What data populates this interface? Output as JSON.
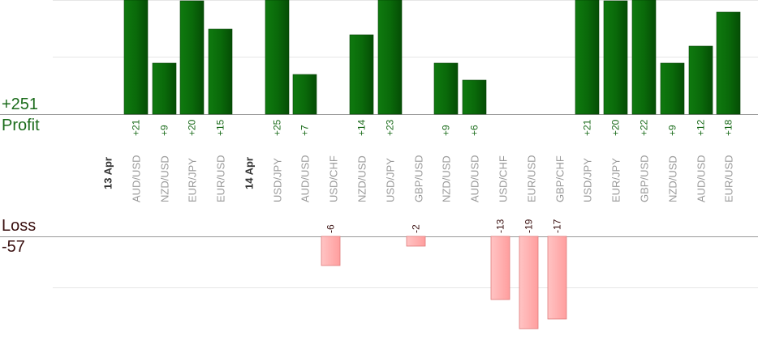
{
  "summary": {
    "profit_total": "+251",
    "profit_label": "Profit",
    "loss_label": "Loss",
    "loss_total": "-57"
  },
  "colors": {
    "profit_bar": "#0a6b0a",
    "loss_bar": "#ffb3b3",
    "profit_text": "#1a6b1a",
    "loss_text": "#3a1010",
    "grid": "#e6e6e6",
    "pair_text": "#999999",
    "date_text": "#333333"
  },
  "chart_data": {
    "type": "bar",
    "items": [
      {
        "kind": "date",
        "label": "13 Apr"
      },
      {
        "kind": "trade",
        "pair": "AUD/USD",
        "value": 21,
        "label": "+21"
      },
      {
        "kind": "trade",
        "pair": "NZD/USD",
        "value": 9,
        "label": "+9"
      },
      {
        "kind": "trade",
        "pair": "EUR/JPY",
        "value": 20,
        "label": "+20"
      },
      {
        "kind": "trade",
        "pair": "EUR/USD",
        "value": 15,
        "label": "+15"
      },
      {
        "kind": "date",
        "label": "14 Apr"
      },
      {
        "kind": "trade",
        "pair": "USD/JPY",
        "value": 25,
        "label": "+25"
      },
      {
        "kind": "trade",
        "pair": "AUD/USD",
        "value": 7,
        "label": "+7"
      },
      {
        "kind": "trade",
        "pair": "USD/CHF",
        "value": -6,
        "label": "-6"
      },
      {
        "kind": "trade",
        "pair": "NZD/USD",
        "value": 14,
        "label": "+14"
      },
      {
        "kind": "trade",
        "pair": "USD/JPY",
        "value": 23,
        "label": "+23"
      },
      {
        "kind": "trade",
        "pair": "GBP/USD",
        "value": -2,
        "label": "-2"
      },
      {
        "kind": "trade",
        "pair": "NZD/USD",
        "value": 9,
        "label": "+9"
      },
      {
        "kind": "trade",
        "pair": "AUD/USD",
        "value": 6,
        "label": "+6"
      },
      {
        "kind": "trade",
        "pair": "USD/CHF",
        "value": -13,
        "label": "-13"
      },
      {
        "kind": "trade",
        "pair": "EUR/USD",
        "value": -19,
        "label": "-19"
      },
      {
        "kind": "trade",
        "pair": "GBP/CHF",
        "value": -17,
        "label": "-17"
      },
      {
        "kind": "trade",
        "pair": "USD/JPY",
        "value": 21,
        "label": "+21"
      },
      {
        "kind": "trade",
        "pair": "EUR/JPY",
        "value": 20,
        "label": "+20"
      },
      {
        "kind": "trade",
        "pair": "GBP/USD",
        "value": 22,
        "label": "+22"
      },
      {
        "kind": "trade",
        "pair": "NZD/USD",
        "value": 9,
        "label": "+9"
      },
      {
        "kind": "trade",
        "pair": "AUD/USD",
        "value": 12,
        "label": "+12"
      },
      {
        "kind": "trade",
        "pair": "EUR/USD",
        "value": 18,
        "label": "+18"
      }
    ],
    "ylim_profit": [
      0,
      20
    ],
    "ylim_loss": [
      -18,
      0
    ],
    "grid": true
  }
}
